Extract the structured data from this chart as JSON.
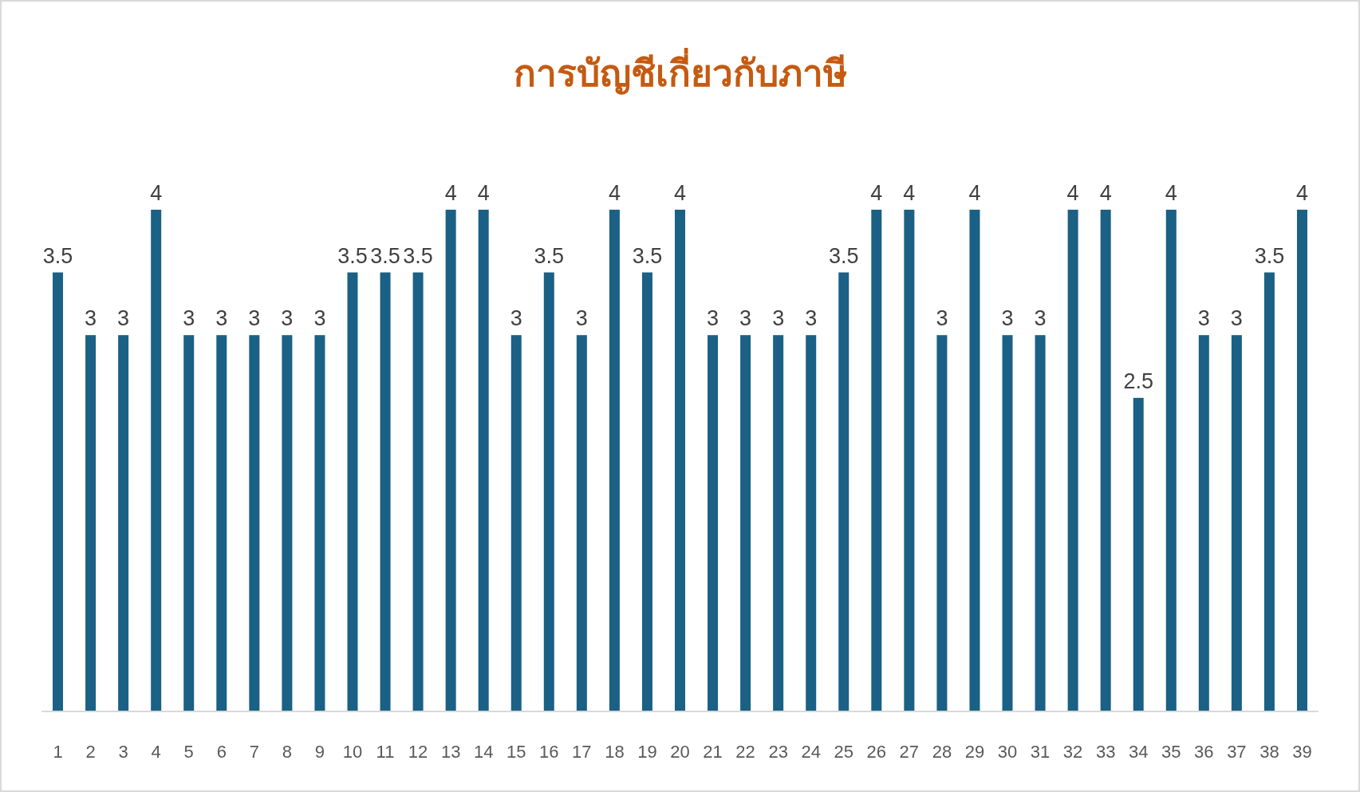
{
  "chart_data": {
    "type": "bar",
    "title": "การบัญชีเกี่ยวกับภาษี",
    "categories": [
      "1",
      "2",
      "3",
      "4",
      "5",
      "6",
      "7",
      "8",
      "9",
      "10",
      "11",
      "12",
      "13",
      "14",
      "15",
      "16",
      "17",
      "18",
      "19",
      "20",
      "21",
      "22",
      "23",
      "24",
      "25",
      "26",
      "27",
      "28",
      "29",
      "30",
      "31",
      "32",
      "33",
      "34",
      "35",
      "36",
      "37",
      "38",
      "39"
    ],
    "values": [
      3.5,
      3,
      3,
      4,
      3,
      3,
      3,
      3,
      3,
      3.5,
      3.5,
      3.5,
      4,
      4,
      3,
      3.5,
      3,
      4,
      3.5,
      4,
      3,
      3,
      3,
      3,
      3.5,
      4,
      4,
      3,
      4,
      3,
      3,
      4,
      4,
      2.5,
      4,
      3,
      3,
      3.5,
      4
    ],
    "color": "#1b6085",
    "data_labels": true,
    "tick_labels": "x"
  }
}
